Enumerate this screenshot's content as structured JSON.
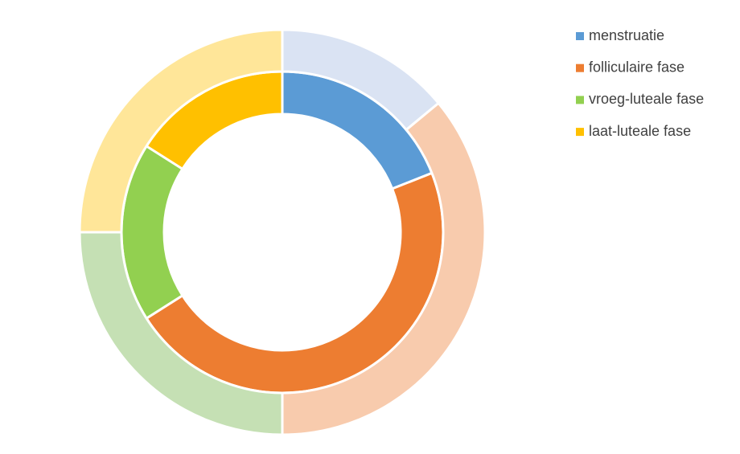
{
  "chart_data": {
    "type": "doughnut",
    "categories": [
      "menstruatie",
      "folliculaire fase",
      "vroeg-luteale fase",
      "laat-luteale fase"
    ],
    "series": [
      {
        "colors": [
          "#5b9bd5",
          "#ed7d31",
          "#92d050",
          "#ffc000"
        ],
        "values": [
          19,
          47,
          18,
          16
        ]
      },
      {
        "colors": [
          "#dae3f3",
          "#f8cbad",
          "#c5e0b4",
          "#ffe699"
        ],
        "values": [
          14,
          36,
          25,
          25
        ]
      }
    ],
    "legend": "right"
  }
}
